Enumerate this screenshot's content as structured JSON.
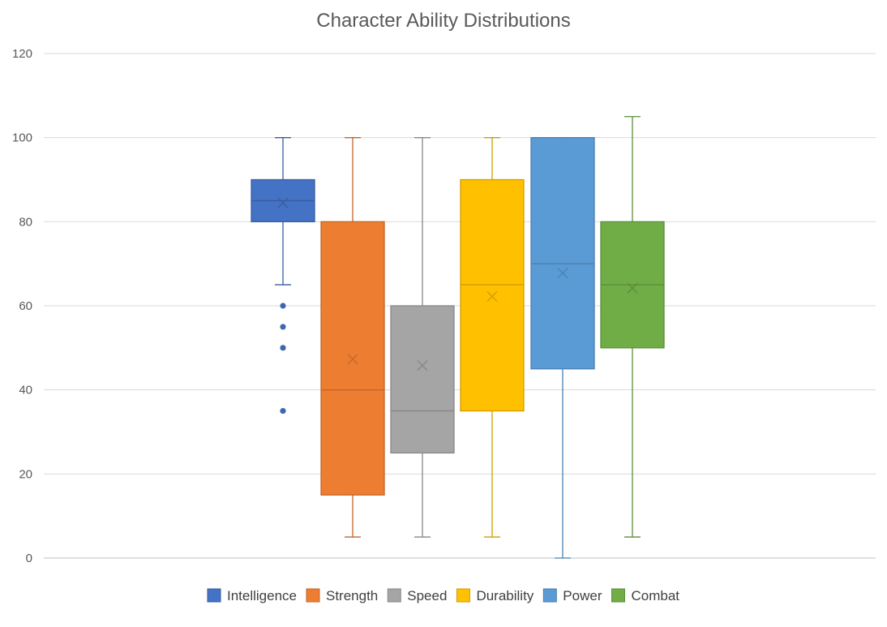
{
  "chart_data": {
    "type": "box",
    "title": "Character Ability Distributions",
    "xlabel": "",
    "ylabel": "",
    "ylim": [
      0,
      120
    ],
    "yticks": [
      0,
      20,
      40,
      60,
      80,
      100,
      120
    ],
    "grid": true,
    "legend_position": "bottom",
    "series": [
      {
        "name": "Intelligence",
        "color": "#4472C4",
        "min": 65,
        "q1": 80,
        "median": 85,
        "q3": 90,
        "max": 100,
        "mean": 84.5,
        "outliers": [
          60,
          55,
          50,
          35
        ]
      },
      {
        "name": "Strength",
        "color": "#ED7D31",
        "min": 5,
        "q1": 15,
        "median": 40,
        "q3": 80,
        "max": 100,
        "mean": 47.3,
        "outliers": []
      },
      {
        "name": "Speed",
        "color": "#A5A5A5",
        "min": 5,
        "q1": 25,
        "median": 35,
        "q3": 60,
        "max": 100,
        "mean": 45.8,
        "outliers": []
      },
      {
        "name": "Durability",
        "color": "#FFC000",
        "min": 5,
        "q1": 35,
        "median": 65,
        "q3": 90,
        "max": 100,
        "mean": 62.2,
        "outliers": []
      },
      {
        "name": "Power",
        "color": "#5B9BD5",
        "min": 0,
        "q1": 45,
        "median": 70,
        "q3": 100,
        "max": 100,
        "mean": 67.8,
        "outliers": []
      },
      {
        "name": "Combat",
        "color": "#70AD47",
        "min": 5,
        "q1": 50,
        "median": 65,
        "q3": 80,
        "max": 105,
        "mean": 64.2,
        "outliers": []
      }
    ]
  }
}
